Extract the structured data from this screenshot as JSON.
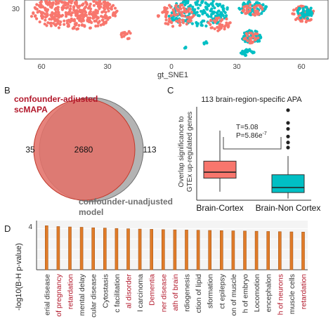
{
  "colors": {
    "coral": "#F8766D",
    "teal": "#00BFC4",
    "gray": "#8c8c8c",
    "bar_orange": "#E07B28",
    "red_label": "#B2182B",
    "dark_label": "#333333"
  },
  "panel_a": {
    "ytick": "30",
    "xticks": [
      "60",
      "30",
      "0",
      "30",
      "60"
    ],
    "xlabel": "gt_SNE1"
  },
  "panel_b": {
    "letter": "B",
    "label_adjusted_line1": "confounder-adjusted",
    "label_adjusted_line2": "scMAPA",
    "label_unadjusted_line1": "confounder-unadjusted",
    "label_unadjusted_line2": "model",
    "count_left": "35",
    "count_overlap": "2680",
    "count_right": "113"
  },
  "panel_c": {
    "letter": "C",
    "title": "113 brain-region-specific APA",
    "ylabel_line1": "Overlap significance to",
    "ylabel_line2": "GTEx up-regulated genes",
    "stat_T": "T=5.08",
    "stat_P": "P=5.86e",
    "stat_P_exp": "-7",
    "categories": [
      "Brain-Cortex",
      "Brain-Non Cortex"
    ]
  },
  "panel_d": {
    "letter": "D",
    "ylabel": "-log10(B-H p-value)",
    "yticks": [
      "4",
      "3",
      "2",
      "1"
    ]
  },
  "chart_data": [
    {
      "type": "box",
      "title": "113 brain-region-specific APA",
      "ylabel": "Overlap significance to GTEx up-regulated genes",
      "categories": [
        "Brain-Cortex",
        "Brain-Non Cortex"
      ],
      "boxes": [
        {
          "category": "Brain-Cortex",
          "min": 1.0,
          "q1": 2.6,
          "median": 3.3,
          "q3": 4.6,
          "max": 8.2,
          "color": "#F8766D",
          "outliers": []
        },
        {
          "category": "Brain-Non Cortex",
          "min": 0.2,
          "q1": 0.9,
          "median": 1.5,
          "q3": 3.0,
          "max": 5.2,
          "color": "#00BFC4",
          "outliers": [
            6.2,
            6.8,
            7.5,
            8.4,
            9.1,
            10.6
          ]
        }
      ],
      "ylim": [
        0,
        11
      ],
      "annotations": [
        "T=5.08",
        "P=5.86e-7"
      ]
    },
    {
      "type": "bar",
      "ylabel": "-log10(B-H p-value)",
      "ylim": [
        0,
        4.8
      ],
      "yticks": [
        1,
        2,
        3,
        4
      ],
      "categories": [
        "erial disease",
        "of pregnancy",
        "retardation",
        "mental delay",
        "cular disease",
        "Cytostasis",
        "c facilitation",
        "al disorder",
        "l carcinoma",
        "Dementia",
        "ner disease",
        "ath of brain",
        "rdiogenesis",
        "ction of lipid",
        "sformation",
        "ct epilepsy",
        "on of muscle",
        "h of embryo",
        "Locomotion",
        "encephalon",
        "h of neurons",
        "muscle cells",
        "retardation"
      ],
      "label_colors": [
        "dark",
        "red",
        "red",
        "dark",
        "dark",
        "dark",
        "dark",
        "red",
        "dark",
        "red",
        "red",
        "red",
        "dark",
        "dark",
        "dark",
        "dark",
        "dark",
        "dark",
        "dark",
        "dark",
        "red",
        "dark",
        "red"
      ],
      "values": [
        4.3,
        4.22,
        4.18,
        4.15,
        4.1,
        4.07,
        4.03,
        4.0,
        3.97,
        3.95,
        3.92,
        3.9,
        3.88,
        3.86,
        3.84,
        3.82,
        3.8,
        3.78,
        3.76,
        3.74,
        3.72,
        3.7,
        3.68
      ]
    }
  ]
}
